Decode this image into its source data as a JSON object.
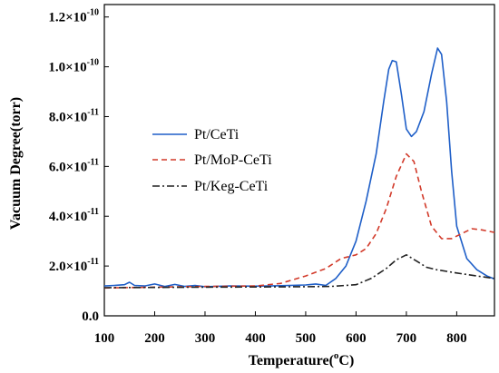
{
  "chart_data": {
    "type": "line",
    "title": "",
    "xlabel": "Temperature(°C)",
    "xlabel_parts": [
      "Temperature(",
      "o",
      "C)"
    ],
    "ylabel": "Vacuum Degree(torr)",
    "xlim": [
      100,
      875
    ],
    "ylim": [
      0,
      1.25e-10
    ],
    "x_ticks": [
      100,
      200,
      300,
      400,
      500,
      600,
      700,
      800
    ],
    "y_ticks": [
      {
        "value": 0,
        "label": "0.0",
        "mant": "",
        "exp": ""
      },
      {
        "value": 2e-11,
        "label": "2.0×10-11",
        "mant": "2.0×10",
        "exp": "-11"
      },
      {
        "value": 4e-11,
        "label": "4.0×10-11",
        "mant": "4.0×10",
        "exp": "-11"
      },
      {
        "value": 6e-11,
        "label": "6.0×10-11",
        "mant": "6.0×10",
        "exp": "-11"
      },
      {
        "value": 8e-11,
        "label": "8.0×10-11",
        "mant": "8.0×10",
        "exp": "-11"
      },
      {
        "value": 1e-10,
        "label": "1.0×10-10",
        "mant": "1.0×10",
        "exp": "-10"
      },
      {
        "value": 1.2e-10,
        "label": "1.2×10-10",
        "mant": "1.2×10",
        "exp": "-10"
      }
    ],
    "grid": false,
    "legend_position": "left-middle",
    "series": [
      {
        "name": "Pt/CeTi",
        "color": "#1f5fc8",
        "dash": "solid",
        "points": [
          [
            100,
            1.2e-11
          ],
          [
            120,
            1.22e-11
          ],
          [
            140,
            1.25e-11
          ],
          [
            150,
            1.35e-11
          ],
          [
            160,
            1.22e-11
          ],
          [
            180,
            1.2e-11
          ],
          [
            200,
            1.28e-11
          ],
          [
            220,
            1.18e-11
          ],
          [
            240,
            1.26e-11
          ],
          [
            260,
            1.18e-11
          ],
          [
            280,
            1.22e-11
          ],
          [
            300,
            1.17e-11
          ],
          [
            350,
            1.2e-11
          ],
          [
            400,
            1.19e-11
          ],
          [
            450,
            1.21e-11
          ],
          [
            500,
            1.24e-11
          ],
          [
            520,
            1.28e-11
          ],
          [
            540,
            1.22e-11
          ],
          [
            560,
            1.5e-11
          ],
          [
            580,
            2e-11
          ],
          [
            600,
            3e-11
          ],
          [
            620,
            4.6e-11
          ],
          [
            640,
            6.5e-11
          ],
          [
            655,
            8.6e-11
          ],
          [
            665,
            9.9e-11
          ],
          [
            672,
            1.025e-10
          ],
          [
            680,
            1.02e-10
          ],
          [
            690,
            8.9e-11
          ],
          [
            700,
            7.5e-11
          ],
          [
            710,
            7.2e-11
          ],
          [
            720,
            7.4e-11
          ],
          [
            735,
            8.2e-11
          ],
          [
            750,
            9.7e-11
          ],
          [
            762,
            1.075e-10
          ],
          [
            770,
            1.05e-10
          ],
          [
            780,
            8.6e-11
          ],
          [
            790,
            5.8e-11
          ],
          [
            800,
            3.6e-11
          ],
          [
            820,
            2.3e-11
          ],
          [
            840,
            1.85e-11
          ],
          [
            860,
            1.6e-11
          ],
          [
            875,
            1.48e-11
          ]
        ]
      },
      {
        "name": "Pt/MoP-CeTi",
        "color": "#d23a2a",
        "dash": "6,4",
        "points": [
          [
            100,
            1.12e-11
          ],
          [
            200,
            1.15e-11
          ],
          [
            300,
            1.18e-11
          ],
          [
            400,
            1.2e-11
          ],
          [
            450,
            1.3e-11
          ],
          [
            500,
            1.6e-11
          ],
          [
            540,
            1.9e-11
          ],
          [
            570,
            2.3e-11
          ],
          [
            600,
            2.45e-11
          ],
          [
            620,
            2.7e-11
          ],
          [
            640,
            3.3e-11
          ],
          [
            660,
            4.3e-11
          ],
          [
            680,
            5.6e-11
          ],
          [
            700,
            6.5e-11
          ],
          [
            715,
            6.2e-11
          ],
          [
            730,
            5e-11
          ],
          [
            750,
            3.6e-11
          ],
          [
            770,
            3.1e-11
          ],
          [
            790,
            3.1e-11
          ],
          [
            810,
            3.3e-11
          ],
          [
            830,
            3.5e-11
          ],
          [
            850,
            3.45e-11
          ],
          [
            875,
            3.35e-11
          ]
        ]
      },
      {
        "name": "Pt/Keg-CeTi",
        "color": "#222222",
        "dash": "8,3,2,3",
        "points": [
          [
            100,
            1.13e-11
          ],
          [
            200,
            1.14e-11
          ],
          [
            300,
            1.15e-11
          ],
          [
            400,
            1.16e-11
          ],
          [
            500,
            1.17e-11
          ],
          [
            550,
            1.18e-11
          ],
          [
            600,
            1.25e-11
          ],
          [
            630,
            1.5e-11
          ],
          [
            660,
            1.9e-11
          ],
          [
            680,
            2.25e-11
          ],
          [
            700,
            2.45e-11
          ],
          [
            720,
            2.2e-11
          ],
          [
            740,
            1.95e-11
          ],
          [
            760,
            1.85e-11
          ],
          [
            800,
            1.72e-11
          ],
          [
            840,
            1.6e-11
          ],
          [
            875,
            1.5e-11
          ]
        ]
      }
    ]
  }
}
